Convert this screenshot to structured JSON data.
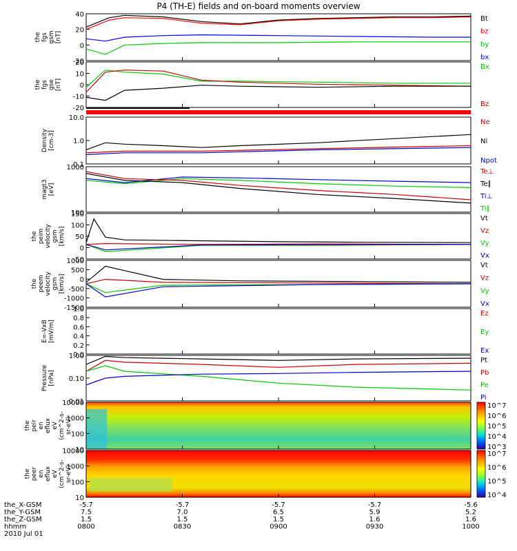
{
  "title": "P4 (TH-E) fields and on-board moments overview",
  "chart_data": {
    "type": "line",
    "time_ticks": [
      "0800",
      "0830",
      "0900",
      "0930",
      "1000"
    ],
    "ephemeris": {
      "labels": [
        "the_X-GSM",
        "the_Y-GSM",
        "the_Z-GSM",
        "hhmm",
        "2010 Jul 01"
      ],
      "rows": [
        [
          "-5.7",
          "-5.7",
          "-5.7",
          "-5.7",
          "-5.6"
        ],
        [
          "7.5",
          "7.0",
          "6.5",
          "5.9",
          "5.2"
        ],
        [
          "1.5",
          "1.5",
          "1.5",
          "1.6",
          "1.6"
        ],
        [
          "0800",
          "0830",
          "0900",
          "0930",
          "1000"
        ]
      ]
    },
    "panels": [
      {
        "key": "fgs_gsm",
        "ylabel": [
          "the",
          "fgs",
          "gsm",
          "[nT]"
        ],
        "ticks": [
          "40",
          "20",
          "0",
          "-20"
        ],
        "ylim": [
          -20,
          40
        ],
        "legend": [
          {
            "name": "Bt",
            "color": "#000000"
          },
          {
            "name": "bz",
            "color": "#ff0000"
          },
          {
            "name": "by",
            "color": "#00c800"
          },
          {
            "name": "bx",
            "color": "#0000ff"
          }
        ],
        "series": [
          {
            "name": "Bt",
            "color": "#000000",
            "x": [
              0,
              0.06,
              0.1,
              0.2,
              0.3,
              0.4,
              0.5,
              0.6,
              0.7,
              0.8,
              0.9,
              1.0
            ],
            "y": [
              23,
              35,
              38,
              36,
              30,
              27,
              32,
              34,
              35,
              36,
              36,
              37
            ]
          },
          {
            "name": "bz",
            "color": "#ff0000",
            "x": [
              0,
              0.06,
              0.1,
              0.2,
              0.3,
              0.4,
              0.5,
              0.6,
              0.7,
              0.8,
              0.9,
              1.0
            ],
            "y": [
              20,
              32,
              35,
              34,
              28,
              26,
              31,
              33,
              34,
              35,
              35,
              36
            ]
          },
          {
            "name": "by",
            "color": "#00c800",
            "x": [
              0,
              0.05,
              0.1,
              0.2,
              0.3,
              0.5,
              0.7,
              0.9,
              1.0
            ],
            "y": [
              -5,
              -12,
              0,
              2,
              3,
              3,
              4,
              4,
              4
            ]
          },
          {
            "name": "bx",
            "color": "#0000ff",
            "x": [
              0,
              0.05,
              0.1,
              0.2,
              0.3,
              0.5,
              0.7,
              0.9,
              1.0
            ],
            "y": [
              8,
              5,
              10,
              12,
              13,
              12,
              11,
              10,
              10
            ]
          }
        ]
      },
      {
        "key": "fgs_gse_tbp",
        "ylabel": [
          "the",
          "fgs",
          "gse",
          "[nT]"
        ],
        "ticks": [
          "20",
          "10",
          "0",
          "-10",
          "-20"
        ],
        "ylim": [
          -25,
          20
        ],
        "legend": [
          {
            "name": "Bx",
            "color": "#00c800"
          },
          {
            "name": "Bz",
            "color": "#c80000"
          }
        ],
        "series": [
          {
            "name": "Bx",
            "color": "#00c800",
            "x": [
              0,
              0.05,
              0.1,
              0.2,
              0.3,
              0.4,
              0.6,
              0.8,
              1.0
            ],
            "y": [
              -5,
              12,
              10,
              8,
              1,
              1,
              0,
              -1,
              -1
            ]
          },
          {
            "name": "Bz",
            "color": "#c80000",
            "x": [
              0,
              0.05,
              0.1,
              0.2,
              0.3,
              0.4,
              0.6,
              0.8,
              1.0
            ],
            "y": [
              -10,
              10,
              12,
              11,
              2,
              0,
              -2,
              -3,
              -4
            ]
          },
          {
            "name": "B",
            "color": "#000000",
            "x": [
              0,
              0.05,
              0.1,
              0.2,
              0.3,
              0.4,
              0.6,
              0.8,
              1.0
            ],
            "y": [
              -15,
              -18,
              -8,
              -6,
              -3,
              -4,
              -5,
              -4,
              -4
            ]
          }
        ]
      },
      {
        "key": "density",
        "ylabel": [
          "Density",
          "[cm-3]"
        ],
        "ticks": [
          "10.0",
          "1.0",
          "0.1"
        ],
        "ylim": [
          0.1,
          10
        ],
        "log": true,
        "legend": [
          {
            "name": "Ne",
            "color": "#c80000"
          },
          {
            "name": "Ni",
            "color": "#000000"
          },
          {
            "name": "Npot",
            "color": "#0000c8"
          }
        ],
        "series": [
          {
            "name": "Ni",
            "color": "#000000",
            "x": [
              0,
              0.05,
              0.1,
              0.2,
              0.3,
              0.4,
              0.6,
              0.8,
              1.0
            ],
            "y": [
              0.4,
              0.8,
              0.7,
              0.6,
              0.5,
              0.6,
              0.8,
              1.2,
              1.8
            ]
          },
          {
            "name": "Ne",
            "color": "#c80000",
            "x": [
              0,
              0.1,
              0.3,
              0.6,
              1.0
            ],
            "y": [
              0.3,
              0.35,
              0.35,
              0.45,
              0.6
            ]
          },
          {
            "name": "Npot",
            "color": "#0000c8",
            "x": [
              0,
              0.1,
              0.3,
              0.6,
              1.0
            ],
            "y": [
              0.25,
              0.3,
              0.3,
              0.4,
              0.5
            ]
          }
        ]
      },
      {
        "key": "temperature",
        "ylabel": [
          "magt3",
          "[eV]"
        ],
        "ticks": [
          "1000",
          "100"
        ],
        "ylim": [
          100,
          10000
        ],
        "log": true,
        "legend": [
          {
            "name": "Te⊥",
            "color": "#c80000"
          },
          {
            "name": "Te∥",
            "color": "#000000"
          },
          {
            "name": "Ti⊥",
            "color": "#0000c8"
          },
          {
            "name": "Ti∥",
            "color": "#00c800"
          }
        ],
        "series": [
          {
            "name": "Ti⊥",
            "color": "#0000c8",
            "x": [
              0,
              0.1,
              0.25,
              0.4,
              0.6,
              0.8,
              1.0
            ],
            "y": [
              3000,
              2000,
              3500,
              3200,
              2700,
              2300,
              2000
            ]
          },
          {
            "name": "Ti∥",
            "color": "#00c800",
            "x": [
              0,
              0.1,
              0.25,
              0.4,
              0.6,
              0.8,
              1.0
            ],
            "y": [
              2500,
              1800,
              3000,
              2500,
              1800,
              1400,
              1200
            ]
          },
          {
            "name": "Te⊥",
            "color": "#c80000",
            "x": [
              0,
              0.1,
              0.25,
              0.4,
              0.6,
              0.8,
              1.0
            ],
            "y": [
              6000,
              3000,
              2500,
              1500,
              900,
              600,
              350
            ]
          },
          {
            "name": "Te∥",
            "color": "#000000",
            "x": [
              0,
              0.1,
              0.25,
              0.4,
              0.6,
              0.8,
              1.0
            ],
            "y": [
              5000,
              2500,
              2000,
              1100,
              600,
              400,
              250
            ]
          }
        ]
      },
      {
        "key": "peim_velocity",
        "ylabel": [
          "the",
          "peim",
          "velocity",
          "gsm",
          "[km/s]"
        ],
        "ticks": [
          "150",
          "100",
          "50",
          "0",
          "-50"
        ],
        "ylim": [
          -80,
          170
        ],
        "legend": [
          {
            "name": "Vt",
            "color": "#000000"
          },
          {
            "name": "Vz",
            "color": "#c80000"
          },
          {
            "name": "Vy",
            "color": "#00c800"
          },
          {
            "name": "Vx",
            "color": "#0000c8"
          }
        ],
        "series": [
          {
            "name": "Vt",
            "color": "#000000",
            "x": [
              0,
              0.02,
              0.05,
              0.1,
              0.3,
              0.5,
              0.7,
              1.0
            ],
            "y": [
              10,
              140,
              40,
              25,
              20,
              15,
              12,
              10
            ]
          },
          {
            "name": "Vz",
            "color": "#c80000",
            "x": [
              0,
              0.05,
              0.3,
              0.6,
              1.0
            ],
            "y": [
              0,
              5,
              0,
              3,
              0
            ]
          },
          {
            "name": "Vy",
            "color": "#00c800",
            "x": [
              0,
              0.05,
              0.3,
              0.6,
              1.0
            ],
            "y": [
              0,
              -40,
              -5,
              -5,
              0
            ]
          },
          {
            "name": "Vx",
            "color": "#0000c8",
            "x": [
              0,
              0.05,
              0.3,
              0.6,
              1.0
            ],
            "y": [
              0,
              -30,
              -3,
              -2,
              0
            ]
          }
        ]
      },
      {
        "key": "peem_velocity",
        "ylabel": [
          "the",
          "peem",
          "velocity",
          "gsm",
          "[km/s]"
        ],
        "ticks": [
          "1000",
          "500",
          "0",
          "-500",
          "-1000",
          "-1500"
        ],
        "ylim": [
          -1600,
          1600
        ],
        "legend": [
          {
            "name": "Vt",
            "color": "#000000"
          },
          {
            "name": "Vz",
            "color": "#c80000"
          },
          {
            "name": "Vy",
            "color": "#00c800"
          },
          {
            "name": "Vx",
            "color": "#0000c8"
          }
        ],
        "series": [
          {
            "name": "Vt",
            "color": "#000000",
            "x": [
              0,
              0.05,
              0.1,
              0.2,
              0.4,
              0.7,
              1.0
            ],
            "y": [
              100,
              1200,
              900,
              300,
              200,
              150,
              100
            ]
          },
          {
            "name": "Vz",
            "color": "#c80000",
            "x": [
              0,
              0.05,
              0.2,
              0.6,
              1.0
            ],
            "y": [
              0,
              300,
              100,
              50,
              0
            ]
          },
          {
            "name": "Vy",
            "color": "#00c800",
            "x": [
              0,
              0.05,
              0.2,
              0.6,
              1.0
            ],
            "y": [
              0,
              -600,
              -100,
              -50,
              0
            ]
          },
          {
            "name": "Vx",
            "color": "#0000c8",
            "x": [
              0,
              0.05,
              0.2,
              0.6,
              1.0
            ],
            "y": [
              0,
              -900,
              -200,
              -50,
              0
            ]
          }
        ]
      },
      {
        "key": "efield",
        "ylabel": [
          "E=-VxB",
          "[mV/m]"
        ],
        "ticks": [
          "1.0",
          "0.8",
          "0.6",
          "0.4",
          "0.2",
          "0.0"
        ],
        "ylim": [
          0,
          1
        ],
        "legend": [
          {
            "name": "Ez",
            "color": "#c80000"
          },
          {
            "name": "Ey",
            "color": "#00c800"
          },
          {
            "name": "Ex",
            "color": "#0000c8"
          }
        ],
        "series": []
      },
      {
        "key": "pressure",
        "ylabel": [
          "Pressure",
          "[nPa]"
        ],
        "ticks": [
          "1.00",
          "0.10",
          "0.01"
        ],
        "ylim": [
          0.01,
          1
        ],
        "log": true,
        "legend": [
          {
            "name": "Pt",
            "color": "#000000"
          },
          {
            "name": "Pb",
            "color": "#c80000"
          },
          {
            "name": "Pe",
            "color": "#00c800"
          },
          {
            "name": "Pi",
            "color": "#0000c8"
          }
        ],
        "series": [
          {
            "name": "Pt",
            "color": "#000000",
            "x": [
              0,
              0.05,
              0.1,
              0.3,
              0.5,
              0.7,
              1.0
            ],
            "y": [
              0.4,
              0.9,
              0.8,
              0.7,
              0.6,
              0.7,
              0.75
            ]
          },
          {
            "name": "Pb",
            "color": "#c80000",
            "x": [
              0,
              0.05,
              0.1,
              0.3,
              0.5,
              0.7,
              1.0
            ],
            "y": [
              0.2,
              0.6,
              0.5,
              0.4,
              0.3,
              0.4,
              0.45
            ]
          },
          {
            "name": "Pe",
            "color": "#00c800",
            "x": [
              0,
              0.05,
              0.1,
              0.3,
              0.5,
              0.7,
              1.0
            ],
            "y": [
              0.2,
              0.35,
              0.2,
              0.12,
              0.06,
              0.04,
              0.03
            ]
          },
          {
            "name": "Pi",
            "color": "#0000c8",
            "x": [
              0,
              0.05,
              0.1,
              0.3,
              0.5,
              0.7,
              1.0
            ],
            "y": [
              0.05,
              0.1,
              0.12,
              0.15,
              0.16,
              0.18,
              0.2
            ]
          }
        ]
      },
      {
        "key": "peir_eflux",
        "type": "heatmap",
        "ylabel": [
          "the",
          "peir",
          "en",
          "eflux",
          "eV",
          "(cm^2-s-",
          "sr-eV)"
        ],
        "ticks": [
          "10000",
          "1000",
          "100",
          "10"
        ],
        "colorbar_ticks": [
          "10^7",
          "10^6",
          "10^5",
          "10^4",
          "10^3"
        ]
      },
      {
        "key": "peer_eflux",
        "type": "heatmap",
        "ylabel": [
          "the",
          "peer",
          "en",
          "eflux",
          "eV",
          "(cm^2-s-",
          "sr-eV)"
        ],
        "ticks": [
          "10000",
          "1000",
          "100",
          "10"
        ],
        "colorbar_ticks": [
          "10^7",
          "10^6",
          "10^5",
          "10^4"
        ]
      }
    ]
  }
}
